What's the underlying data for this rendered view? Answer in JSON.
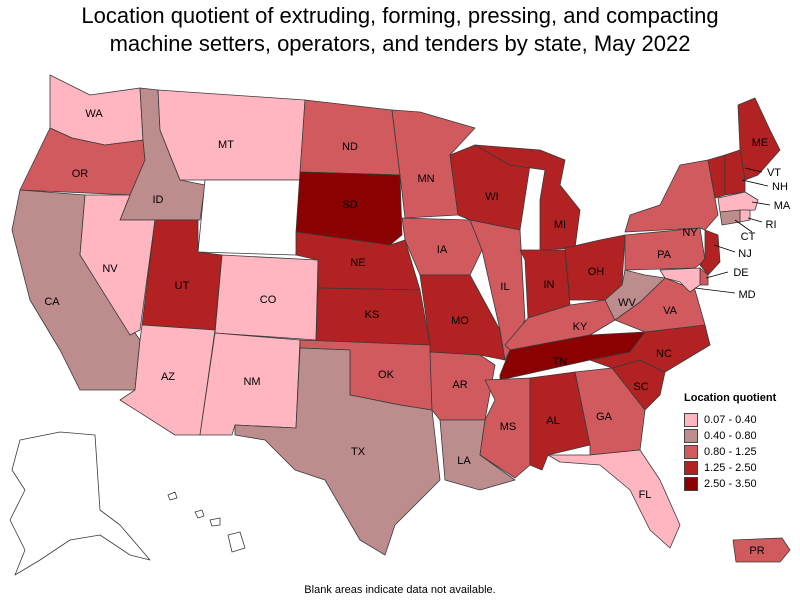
{
  "title": {
    "line1": "Location quotient of extruding, forming, pressing, and compacting",
    "line2": "machine setters, operators, and tenders by state, May 2022"
  },
  "colors": {
    "bin1": "#ffb6c1",
    "bin2": "#bd8d8e",
    "bin3": "#d15a5f",
    "bin4": "#b22222",
    "bin5": "#8b0000",
    "na": "#ffffff"
  },
  "legend": {
    "title": "Location quotient",
    "bins": [
      {
        "label": "0.07 - 0.40",
        "color": "#ffb6c1"
      },
      {
        "label": "0.40 - 0.80",
        "color": "#bd8d8e"
      },
      {
        "label": "0.80 - 1.25",
        "color": "#d15a5f"
      },
      {
        "label": "1.25 - 2.50",
        "color": "#b22222"
      },
      {
        "label": "2.50 - 3.50",
        "color": "#8b0000"
      }
    ]
  },
  "states": {
    "WA": {
      "label": "WA",
      "bin": 1
    },
    "OR": {
      "label": "OR",
      "bin": 3
    },
    "CA": {
      "label": "CA",
      "bin": 2
    },
    "ID": {
      "label": "ID",
      "bin": 2
    },
    "NV": {
      "label": "NV",
      "bin": 1
    },
    "MT": {
      "label": "MT",
      "bin": 1
    },
    "WY": {
      "label": "",
      "bin": 0
    },
    "UT": {
      "label": "UT",
      "bin": 4
    },
    "AZ": {
      "label": "AZ",
      "bin": 1
    },
    "CO": {
      "label": "CO",
      "bin": 1
    },
    "NM": {
      "label": "NM",
      "bin": 1
    },
    "ND": {
      "label": "ND",
      "bin": 3
    },
    "SD": {
      "label": "SD",
      "bin": 5
    },
    "NE": {
      "label": "NE",
      "bin": 4
    },
    "KS": {
      "label": "KS",
      "bin": 4
    },
    "OK": {
      "label": "OK",
      "bin": 3
    },
    "TX": {
      "label": "TX",
      "bin": 2
    },
    "MN": {
      "label": "MN",
      "bin": 3
    },
    "IA": {
      "label": "IA",
      "bin": 3
    },
    "MO": {
      "label": "MO",
      "bin": 4
    },
    "AR": {
      "label": "AR",
      "bin": 3
    },
    "LA": {
      "label": "LA",
      "bin": 2
    },
    "WI": {
      "label": "WI",
      "bin": 4
    },
    "IL": {
      "label": "IL",
      "bin": 3
    },
    "MI": {
      "label": "MI",
      "bin": 4
    },
    "IN": {
      "label": "IN",
      "bin": 4
    },
    "OH": {
      "label": "OH",
      "bin": 4
    },
    "KY": {
      "label": "KY",
      "bin": 3
    },
    "TN": {
      "label": "TN",
      "bin": 5
    },
    "MS": {
      "label": "MS",
      "bin": 3
    },
    "AL": {
      "label": "AL",
      "bin": 4
    },
    "GA": {
      "label": "GA",
      "bin": 3
    },
    "FL": {
      "label": "FL",
      "bin": 1
    },
    "SC": {
      "label": "SC",
      "bin": 4
    },
    "NC": {
      "label": "NC",
      "bin": 4
    },
    "VA": {
      "label": "VA",
      "bin": 3
    },
    "WV": {
      "label": "WV",
      "bin": 2
    },
    "PA": {
      "label": "PA",
      "bin": 3
    },
    "NY": {
      "label": "NY",
      "bin": 3
    },
    "ME": {
      "label": "ME",
      "bin": 4
    },
    "VT": {
      "label": "VT",
      "bin": 4
    },
    "NH": {
      "label": "NH",
      "bin": 4
    },
    "MA": {
      "label": "MA",
      "bin": 1
    },
    "RI": {
      "label": "RI",
      "bin": 1
    },
    "CT": {
      "label": "CT",
      "bin": 2
    },
    "NJ": {
      "label": "NJ",
      "bin": 4
    },
    "DE": {
      "label": "DE",
      "bin": 3
    },
    "MD": {
      "label": "MD",
      "bin": 1
    },
    "AK": {
      "label": "",
      "bin": 0
    },
    "HI": {
      "label": "",
      "bin": 0
    },
    "PR": {
      "label": "PR",
      "bin": 3
    }
  },
  "footnote": "Blank areas indicate data not available."
}
